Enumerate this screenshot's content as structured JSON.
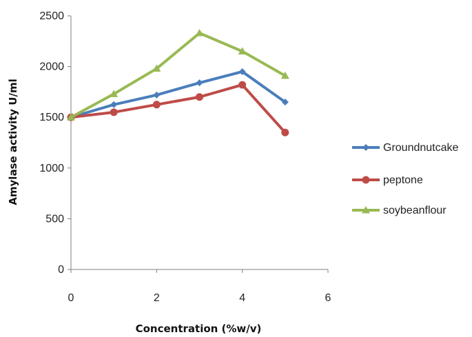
{
  "chart_data": {
    "type": "line",
    "title": "",
    "xlabel": "Concentration (%w/v)",
    "ylabel": "Amylase activity U/ml",
    "xlim": [
      0,
      6
    ],
    "ylim": [
      0,
      2500
    ],
    "x_ticks": [
      "0",
      "2",
      "4",
      "6"
    ],
    "y_ticks": [
      "0",
      "500",
      "1000",
      "1500",
      "2000",
      "2500"
    ],
    "x": [
      0,
      1,
      2,
      3,
      4,
      5
    ],
    "grid": false,
    "legend_position": "right",
    "series": [
      {
        "name": "Groundnutcake",
        "color": "#4A7EBB",
        "marker": "diamond",
        "values": [
          1500,
          1625,
          1720,
          1840,
          1950,
          1650
        ]
      },
      {
        "name": "peptone",
        "color": "#BE4B48",
        "marker": "circle",
        "values": [
          1500,
          1550,
          1625,
          1700,
          1820,
          1350
        ]
      },
      {
        "name": "soybeanflour",
        "color": "#98B954",
        "marker": "triangle",
        "values": [
          1500,
          1730,
          1980,
          2330,
          2150,
          1910
        ]
      }
    ]
  }
}
